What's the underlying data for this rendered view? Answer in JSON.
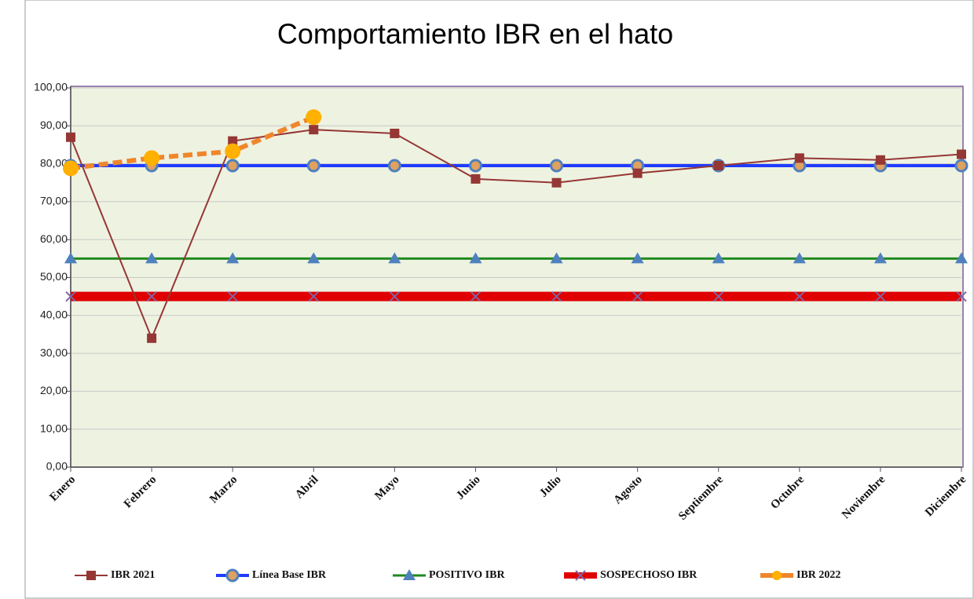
{
  "chart_data": {
    "type": "line",
    "title": "Comportamiento IBR en el hato",
    "categories": [
      "Enero",
      "Febrero",
      "Marzo",
      "Abril",
      "Mayo",
      "Junio",
      "Julio",
      "Agosto",
      "Septiembre",
      "Octubre",
      "Noviembre",
      "Diciembre"
    ],
    "series": [
      {
        "name": "IBR 2021",
        "color": "#953735",
        "marker": "square",
        "values": [
          87,
          34,
          86,
          89,
          88,
          76,
          75,
          77.5,
          79.5,
          81.5,
          81,
          82.5
        ]
      },
      {
        "name": "Línea Base IBR",
        "color": "#1f3cff",
        "marker": "circle",
        "values": [
          79.5,
          79.5,
          79.5,
          79.5,
          79.5,
          79.5,
          79.5,
          79.5,
          79.5,
          79.5,
          79.5,
          79.5
        ]
      },
      {
        "name": "POSITIVO IBR",
        "color": "#1f8a1f",
        "marker": "triangle",
        "values": [
          55,
          55,
          55,
          55,
          55,
          55,
          55,
          55,
          55,
          55,
          55,
          55
        ]
      },
      {
        "name": "SOSPECHOSO IBR",
        "color": "#e00000",
        "marker": "x",
        "values": [
          45,
          45,
          45,
          45,
          45,
          45,
          45,
          45,
          45,
          45,
          45,
          45
        ]
      },
      {
        "name": "IBR 2022",
        "color": "#f0862b",
        "marker": "dot",
        "dashed": true,
        "values": [
          78.8,
          81.5,
          83.3,
          92.3,
          null,
          null,
          null,
          null,
          null,
          null,
          null,
          null
        ]
      }
    ],
    "ylim": [
      0,
      100
    ],
    "yticks": [
      {
        "value": 0,
        "label": "0,00"
      },
      {
        "value": 10,
        "label": "10,00"
      },
      {
        "value": 20,
        "label": "20,00"
      },
      {
        "value": 30,
        "label": "30,00"
      },
      {
        "value": 40,
        "label": "40,00"
      },
      {
        "value": 50,
        "label": "50,00"
      },
      {
        "value": 60,
        "label": "60,00"
      },
      {
        "value": 70,
        "label": "70,00"
      },
      {
        "value": 80,
        "label": "80,00"
      },
      {
        "value": 90,
        "label": "90,00"
      },
      {
        "value": 100,
        "label": "100,00"
      }
    ],
    "grid": true,
    "legend": "bottom"
  }
}
